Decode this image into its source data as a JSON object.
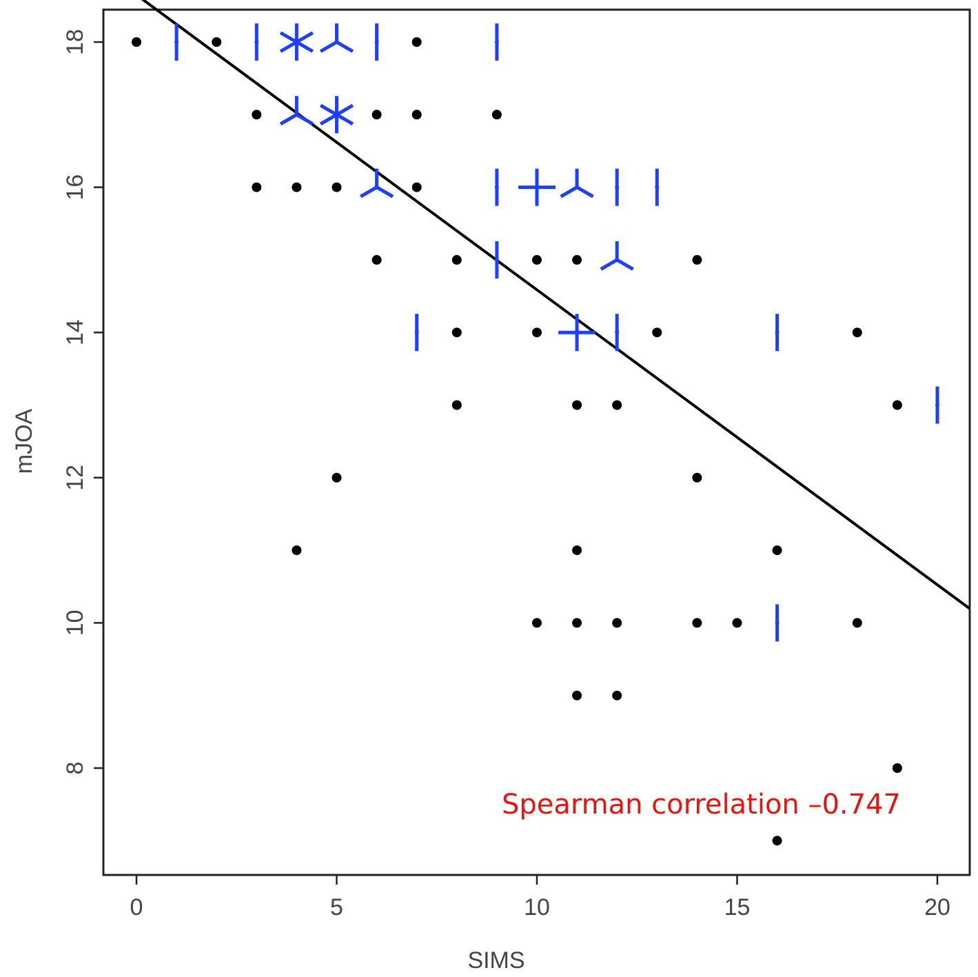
{
  "chart_data": {
    "type": "scatter",
    "title": "",
    "xlabel": "SIMS",
    "ylabel": "mJOA",
    "xlim": [
      -0.8,
      20.8
    ],
    "ylim": [
      6.6,
      18.45
    ],
    "xticks": [
      "0",
      "5",
      "10",
      "15",
      "20"
    ],
    "yticks": [
      "8",
      "10",
      "12",
      "14",
      "16",
      "18"
    ],
    "grid": false,
    "colors": {
      "point": "#000000",
      "sunflower": "#1f3fff",
      "line": "#000000",
      "annotation": "#e8140f"
    },
    "annotation": "Spearman correlation –0.747",
    "points": [
      {
        "x": 0,
        "y": 18
      },
      {
        "x": 2,
        "y": 18
      },
      {
        "x": 7,
        "y": 18
      },
      {
        "x": 3,
        "y": 17
      },
      {
        "x": 6,
        "y": 17
      },
      {
        "x": 7,
        "y": 17
      },
      {
        "x": 9,
        "y": 17
      },
      {
        "x": 3,
        "y": 16
      },
      {
        "x": 4,
        "y": 16
      },
      {
        "x": 5,
        "y": 16
      },
      {
        "x": 7,
        "y": 16
      },
      {
        "x": 6,
        "y": 15
      },
      {
        "x": 8,
        "y": 15
      },
      {
        "x": 10,
        "y": 15
      },
      {
        "x": 11,
        "y": 15
      },
      {
        "x": 14,
        "y": 15
      },
      {
        "x": 8,
        "y": 14
      },
      {
        "x": 10,
        "y": 14
      },
      {
        "x": 13,
        "y": 14
      },
      {
        "x": 18,
        "y": 14
      },
      {
        "x": 8,
        "y": 13
      },
      {
        "x": 11,
        "y": 13
      },
      {
        "x": 12,
        "y": 13
      },
      {
        "x": 19,
        "y": 13
      },
      {
        "x": 5,
        "y": 12
      },
      {
        "x": 14,
        "y": 12
      },
      {
        "x": 4,
        "y": 11
      },
      {
        "x": 11,
        "y": 11
      },
      {
        "x": 16,
        "y": 11
      },
      {
        "x": 10,
        "y": 10
      },
      {
        "x": 11,
        "y": 10
      },
      {
        "x": 12,
        "y": 10
      },
      {
        "x": 14,
        "y": 10
      },
      {
        "x": 15,
        "y": 10
      },
      {
        "x": 18,
        "y": 10
      },
      {
        "x": 11,
        "y": 9
      },
      {
        "x": 12,
        "y": 9
      },
      {
        "x": 19,
        "y": 8
      },
      {
        "x": 16,
        "y": 7
      }
    ],
    "sunflowers": [
      {
        "x": 1,
        "y": 18,
        "count": 2
      },
      {
        "x": 3,
        "y": 18,
        "count": 2
      },
      {
        "x": 4,
        "y": 18,
        "count": 6
      },
      {
        "x": 5,
        "y": 18,
        "count": 3
      },
      {
        "x": 6,
        "y": 18,
        "count": 2
      },
      {
        "x": 9,
        "y": 18,
        "count": 2
      },
      {
        "x": 4,
        "y": 17,
        "count": 3
      },
      {
        "x": 5,
        "y": 17,
        "count": 6
      },
      {
        "x": 6,
        "y": 16,
        "count": 3
      },
      {
        "x": 9,
        "y": 16,
        "count": 2
      },
      {
        "x": 10,
        "y": 16,
        "count": 4
      },
      {
        "x": 11,
        "y": 16,
        "count": 3
      },
      {
        "x": 12,
        "y": 16,
        "count": 2
      },
      {
        "x": 13,
        "y": 16,
        "count": 2
      },
      {
        "x": 9,
        "y": 15,
        "count": 2
      },
      {
        "x": 12,
        "y": 15,
        "count": 3
      },
      {
        "x": 7,
        "y": 14,
        "count": 2
      },
      {
        "x": 11,
        "y": 14,
        "count": 4
      },
      {
        "x": 12,
        "y": 14,
        "count": 2
      },
      {
        "x": 16,
        "y": 14,
        "count": 2
      },
      {
        "x": 20,
        "y": 13,
        "count": 2
      },
      {
        "x": 16,
        "y": 10,
        "count": 2
      }
    ],
    "fit_line": {
      "x": [
        0,
        20.8
      ],
      "y": [
        18.65,
        10.2
      ]
    }
  }
}
